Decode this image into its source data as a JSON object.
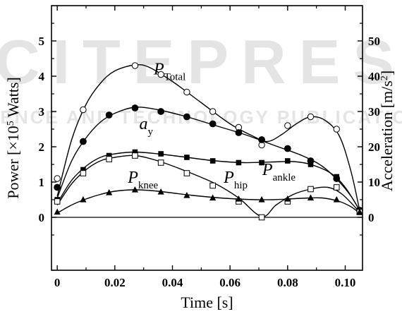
{
  "chart_data": {
    "type": "line",
    "xlabel": "Time [s]",
    "ylabel": "Power  [×10⁵ Watts]",
    "ylabel_parts": [
      "Power  [",
      "×",
      "10",
      "5",
      " Watts]"
    ],
    "y2label": "Acceleration [m/s²]",
    "y2label_parts": [
      "Acceleration [m/s",
      "2",
      "]"
    ],
    "xlim": [
      -0.002,
      0.106
    ],
    "ylim": [
      -1.5,
      6.0
    ],
    "y2lim": [
      -15,
      60
    ],
    "x_ticks": [
      0,
      0.02,
      0.04,
      0.06,
      0.08,
      0.1
    ],
    "x_tick_labels": [
      "0",
      "0.02",
      "0.04",
      "0.06",
      "0.08",
      "0.10"
    ],
    "y_ticks": [
      0,
      1,
      2,
      3,
      4,
      5
    ],
    "y_tick_labels": [
      "0",
      "1",
      "2",
      "3",
      "4",
      "5"
    ],
    "y2_ticks": [
      0,
      10,
      20,
      30,
      40,
      50
    ],
    "y2_tick_labels": [
      "0",
      "10",
      "20",
      "30",
      "40",
      "50"
    ],
    "grid": false,
    "zero_line": true,
    "series": [
      {
        "name": "P_Total",
        "marker": "circle-open",
        "axis": "left",
        "x": [
          0,
          0.009,
          0.027,
          0.036,
          0.045,
          0.054,
          0.063,
          0.071,
          0.08,
          0.088,
          0.097,
          0.105
        ],
        "y": [
          1.1,
          3.05,
          4.3,
          4.05,
          3.55,
          3.0,
          2.55,
          2.05,
          2.6,
          2.85,
          2.5,
          0.2
        ],
        "curve": [
          [
            0,
            0.6
          ],
          [
            0.005,
            2.2
          ],
          [
            0.01,
            3.2
          ],
          [
            0.015,
            3.8
          ],
          [
            0.02,
            4.15
          ],
          [
            0.027,
            4.32
          ],
          [
            0.032,
            4.25
          ],
          [
            0.04,
            3.85
          ],
          [
            0.05,
            3.25
          ],
          [
            0.06,
            2.65
          ],
          [
            0.068,
            2.3
          ],
          [
            0.073,
            2.15
          ],
          [
            0.078,
            2.35
          ],
          [
            0.083,
            2.65
          ],
          [
            0.088,
            2.85
          ],
          [
            0.093,
            2.75
          ],
          [
            0.098,
            2.3
          ],
          [
            0.102,
            1.3
          ],
          [
            0.105,
            0.2
          ]
        ]
      },
      {
        "name": "a_y",
        "marker": "circle-filled",
        "axis": "left",
        "x": [
          0,
          0.009,
          0.018,
          0.027,
          0.036,
          0.045,
          0.054,
          0.063,
          0.071,
          0.08,
          0.088,
          0.097,
          0.105
        ],
        "y": [
          0.85,
          2.15,
          2.9,
          3.1,
          3.0,
          2.85,
          2.65,
          2.4,
          2.2,
          1.95,
          1.6,
          1.1,
          0.2
        ],
        "curve": [
          [
            0,
            0.55
          ],
          [
            0.005,
            1.6
          ],
          [
            0.01,
            2.25
          ],
          [
            0.015,
            2.7
          ],
          [
            0.02,
            2.95
          ],
          [
            0.027,
            3.12
          ],
          [
            0.035,
            3.05
          ],
          [
            0.045,
            2.85
          ],
          [
            0.055,
            2.6
          ],
          [
            0.065,
            2.35
          ],
          [
            0.075,
            2.05
          ],
          [
            0.085,
            1.75
          ],
          [
            0.092,
            1.45
          ],
          [
            0.098,
            1.0
          ],
          [
            0.102,
            0.6
          ],
          [
            0.105,
            0.2
          ]
        ]
      },
      {
        "name": "P_ankle",
        "marker": "square-filled",
        "axis": "left",
        "x": [
          0,
          0.009,
          0.018,
          0.027,
          0.036,
          0.045,
          0.054,
          0.063,
          0.071,
          0.08,
          0.088,
          0.097,
          0.105
        ],
        "y": [
          0.5,
          1.35,
          1.75,
          1.85,
          1.8,
          1.7,
          1.6,
          1.55,
          1.55,
          1.6,
          1.5,
          1.15,
          0.2
        ],
        "curve": [
          [
            0,
            0.4
          ],
          [
            0.005,
            1.05
          ],
          [
            0.01,
            1.45
          ],
          [
            0.015,
            1.7
          ],
          [
            0.02,
            1.8
          ],
          [
            0.027,
            1.85
          ],
          [
            0.035,
            1.8
          ],
          [
            0.045,
            1.7
          ],
          [
            0.055,
            1.6
          ],
          [
            0.065,
            1.55
          ],
          [
            0.075,
            1.57
          ],
          [
            0.082,
            1.58
          ],
          [
            0.088,
            1.5
          ],
          [
            0.095,
            1.25
          ],
          [
            0.1,
            0.85
          ],
          [
            0.105,
            0.2
          ]
        ]
      },
      {
        "name": "P_hip",
        "marker": "square-open",
        "axis": "left",
        "x": [
          0,
          0.009,
          0.018,
          0.027,
          0.036,
          0.045,
          0.054,
          0.063,
          0.071,
          0.08,
          0.088,
          0.097,
          0.105
        ],
        "y": [
          0.45,
          1.25,
          1.65,
          1.75,
          1.55,
          1.25,
          0.9,
          0.45,
          0.0,
          0.45,
          0.8,
          0.85,
          0.15
        ],
        "curve": [
          [
            0,
            0.35
          ],
          [
            0.005,
            0.95
          ],
          [
            0.01,
            1.35
          ],
          [
            0.015,
            1.6
          ],
          [
            0.02,
            1.7
          ],
          [
            0.027,
            1.75
          ],
          [
            0.035,
            1.6
          ],
          [
            0.045,
            1.3
          ],
          [
            0.055,
            0.95
          ],
          [
            0.063,
            0.55
          ],
          [
            0.071,
            0.02
          ],
          [
            0.076,
            0.35
          ],
          [
            0.082,
            0.65
          ],
          [
            0.088,
            0.8
          ],
          [
            0.094,
            0.85
          ],
          [
            0.099,
            0.65
          ],
          [
            0.105,
            0.15
          ]
        ]
      },
      {
        "name": "P_knee",
        "marker": "triangle-filled",
        "axis": "left",
        "x": [
          0,
          0.009,
          0.018,
          0.027,
          0.036,
          0.045,
          0.054,
          0.063,
          0.071,
          0.08,
          0.088,
          0.097,
          0.105
        ],
        "y": [
          0.15,
          0.5,
          0.7,
          0.78,
          0.72,
          0.62,
          0.55,
          0.52,
          0.5,
          0.52,
          0.55,
          0.5,
          0.15
        ],
        "curve": [
          [
            0,
            0.12
          ],
          [
            0.005,
            0.35
          ],
          [
            0.01,
            0.52
          ],
          [
            0.015,
            0.65
          ],
          [
            0.02,
            0.74
          ],
          [
            0.027,
            0.78
          ],
          [
            0.035,
            0.74
          ],
          [
            0.045,
            0.64
          ],
          [
            0.055,
            0.56
          ],
          [
            0.065,
            0.51
          ],
          [
            0.075,
            0.5
          ],
          [
            0.085,
            0.54
          ],
          [
            0.092,
            0.55
          ],
          [
            0.098,
            0.45
          ],
          [
            0.102,
            0.3
          ],
          [
            0.105,
            0.12
          ]
        ]
      }
    ],
    "annotations": [
      {
        "main": "P",
        "sub": "Total",
        "x": 0.0335,
        "y": 4.05
      },
      {
        "main": "a",
        "sub": "y",
        "x": 0.0285,
        "y": 2.5
      },
      {
        "main": "P",
        "sub": "knee",
        "x": 0.0245,
        "y": 0.98
      },
      {
        "main": "P",
        "sub": "hip",
        "x": 0.0578,
        "y": 0.98
      },
      {
        "main": "P",
        "sub": "ankle",
        "x": 0.0712,
        "y": 1.2
      }
    ],
    "watermark": "SCITEPRESS SCIENCE AND TECHNOLOGY PUBLICATIONS"
  }
}
